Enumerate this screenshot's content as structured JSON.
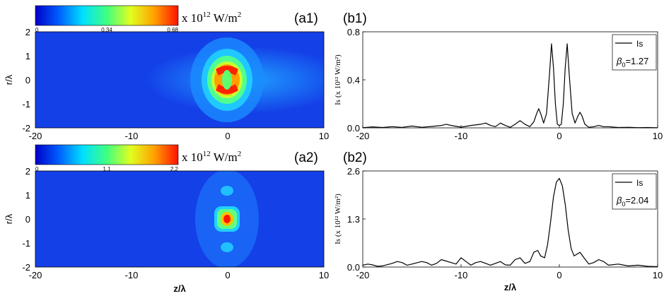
{
  "panels": [
    {
      "id": "a1",
      "label": "(a1)",
      "colorbar": {
        "ticks": [
          "0",
          "0.34",
          "0.68"
        ],
        "unit_prefix": "x 10",
        "unit_exp": "12",
        "unit_main": " W/m",
        "unit_sq": "2",
        "colors": [
          "#0000c8",
          "#0060ff",
          "#00e0ff",
          "#40ff80",
          "#e0ff20",
          "#ffa000",
          "#ff1000"
        ]
      },
      "xlabel": "",
      "ylabel": "r/λ",
      "xticks": [
        "-20",
        "-10",
        "0",
        "10"
      ],
      "yticks": [
        "2",
        "1",
        "0",
        "-1",
        "-2"
      ]
    },
    {
      "id": "a2",
      "label": "(a2)",
      "colorbar": {
        "ticks": [
          "0",
          "1.1",
          "2.2"
        ],
        "unit_prefix": "x 10",
        "unit_exp": "12",
        "unit_main": " W/m",
        "unit_sq": "2",
        "colors": [
          "#0000c8",
          "#0060ff",
          "#00e0ff",
          "#40ff80",
          "#e0ff20",
          "#ffa000",
          "#ff1000"
        ]
      },
      "xlabel": "z/λ",
      "ylabel": "r/λ",
      "xticks": [
        "-20",
        "-10",
        "0",
        "10"
      ],
      "yticks": [
        "2",
        "1",
        "0",
        "-1",
        "-2"
      ]
    }
  ],
  "chart_data": [
    {
      "id": "b1",
      "type": "line",
      "label": "(b1)",
      "ylabel": "Is (x 10¹² W/m²)",
      "xlabel": "",
      "xlim": [
        -20,
        10
      ],
      "ylim": [
        0,
        0.8
      ],
      "yticks": [
        "0.0",
        "0.4",
        "0.8"
      ],
      "xticks": [
        "-20",
        "-10",
        "0",
        "10"
      ],
      "legend": {
        "series": "Is",
        "param_symbol": "β",
        "param_sub": "0",
        "param_value": "=1.27",
        "placement": "top-right"
      },
      "series": [
        {
          "name": "Is",
          "x": [
            -20,
            -19,
            -18,
            -17,
            -16,
            -15,
            -14,
            -13,
            -12,
            -11.5,
            -11,
            -10,
            -9,
            -8,
            -7.5,
            -7,
            -6.5,
            -6,
            -5.5,
            -5,
            -4.5,
            -4,
            -3.5,
            -3,
            -2.6,
            -2.3,
            -2.1,
            -1.9,
            -1.6,
            -1.3,
            -1.0,
            -0.8,
            -0.6,
            -0.4,
            -0.2,
            0,
            0.2,
            0.4,
            0.6,
            0.8,
            1.0,
            1.3,
            1.6,
            1.9,
            2.1,
            2.3,
            2.6,
            3,
            3.5,
            4,
            4.5,
            5,
            6,
            7,
            8,
            9,
            10
          ],
          "y": [
            0.002,
            0.008,
            0.003,
            0.01,
            0.004,
            0.015,
            0.005,
            0.012,
            0.02,
            0.03,
            0.02,
            0.006,
            0.02,
            0.03,
            0.04,
            0.02,
            0.01,
            0.04,
            0.02,
            0.005,
            0.03,
            0.06,
            0.03,
            0.01,
            0.05,
            0.12,
            0.16,
            0.12,
            0.04,
            0.12,
            0.45,
            0.7,
            0.5,
            0.2,
            0.03,
            0.02,
            0.03,
            0.2,
            0.5,
            0.7,
            0.45,
            0.12,
            0.04,
            0.1,
            0.13,
            0.1,
            0.03,
            0.005,
            0.01,
            0.02,
            0.01,
            0.01,
            0.003,
            0.005,
            0.002,
            0.003,
            0.001
          ]
        }
      ]
    },
    {
      "id": "b2",
      "type": "line",
      "label": "(b2)",
      "ylabel": "Is (x 10¹² W/m²)",
      "xlabel": "z/λ",
      "xlim": [
        -20,
        10
      ],
      "ylim": [
        0,
        2.6
      ],
      "yticks": [
        "0.0",
        "1.3",
        "2.6"
      ],
      "xticks": [
        "-20",
        "-10",
        "0",
        "10"
      ],
      "legend": {
        "series": "Is",
        "param_symbol": "β",
        "param_sub": "0",
        "param_value": "=2.04",
        "placement": "top-right"
      },
      "series": [
        {
          "name": "Is",
          "x": [
            -20,
            -19.5,
            -19,
            -18.5,
            -18,
            -17,
            -16.5,
            -16,
            -15.5,
            -15,
            -14,
            -13.5,
            -13,
            -12.5,
            -12,
            -11,
            -10.5,
            -10,
            -9.5,
            -9,
            -8.5,
            -8,
            -7,
            -6.5,
            -6,
            -5.5,
            -5,
            -4.5,
            -4,
            -3.5,
            -3,
            -2.6,
            -2.2,
            -1.9,
            -1.5,
            -1.2,
            -0.9,
            -0.6,
            -0.3,
            0,
            0.3,
            0.6,
            0.9,
            1.2,
            1.5,
            1.8,
            2.1,
            2.5,
            3,
            3.5,
            4,
            4.5,
            5,
            6,
            7,
            8,
            9,
            10
          ],
          "y": [
            0.05,
            0.08,
            0.06,
            0.02,
            0.03,
            0.1,
            0.15,
            0.12,
            0.05,
            0.08,
            0.15,
            0.12,
            0.05,
            0.1,
            0.2,
            0.12,
            0.08,
            0.25,
            0.15,
            0.05,
            0.12,
            0.15,
            0.05,
            0.1,
            0.15,
            0.06,
            0.05,
            0.2,
            0.25,
            0.1,
            0.15,
            0.4,
            0.45,
            0.3,
            0.25,
            0.6,
            1.2,
            1.9,
            2.3,
            2.4,
            2.2,
            1.7,
            1.0,
            0.5,
            0.3,
            0.35,
            0.4,
            0.25,
            0.08,
            0.12,
            0.2,
            0.15,
            0.05,
            0.08,
            0.03,
            0.05,
            0.02,
            0.01
          ]
        }
      ]
    }
  ]
}
